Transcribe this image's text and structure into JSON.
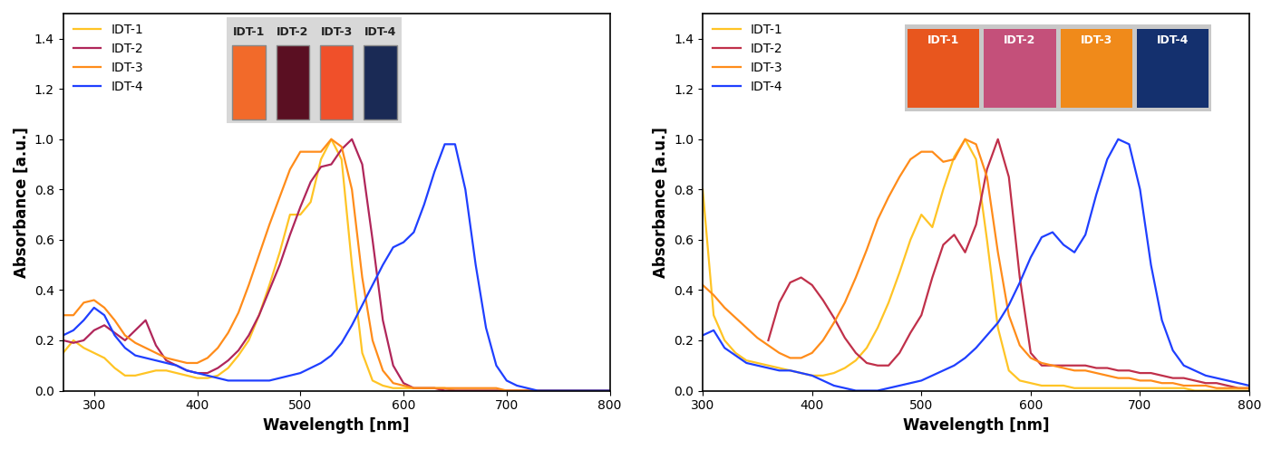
{
  "chart_data": [
    {
      "type": "line",
      "x_label": "Wavelength [nm]",
      "y_label": "Absorbance [a.u.]",
      "xlim": [
        270,
        800
      ],
      "xticks": [
        300,
        400,
        500,
        600,
        700,
        800
      ],
      "ylim": [
        0,
        1.5
      ],
      "yticks": [
        {
          "value": 0,
          "label": "0.0"
        },
        {
          "value": 0.2,
          "label": "0.2"
        },
        {
          "value": 0.4,
          "label": "0.4"
        },
        {
          "value": 0.6,
          "label": "0.6"
        },
        {
          "value": 0.8,
          "label": "0.8"
        },
        {
          "value": 1.0,
          "label": "1.0"
        },
        {
          "value": 1.2,
          "label": "1.2"
        },
        {
          "value": 1.4,
          "label": "1.4"
        }
      ],
      "legend": "upper left",
      "x": [
        270,
        280,
        290,
        300,
        310,
        320,
        330,
        340,
        350,
        360,
        370,
        380,
        390,
        400,
        410,
        420,
        430,
        440,
        450,
        460,
        470,
        480,
        490,
        500,
        510,
        520,
        530,
        540,
        550,
        560,
        570,
        580,
        590,
        600,
        610,
        620,
        630,
        640,
        650,
        660,
        670,
        680,
        690,
        700,
        710,
        720,
        730,
        740,
        750,
        760,
        770,
        780,
        790,
        800
      ],
      "series": [
        {
          "name": "IDT-1",
          "color": "#ffc425",
          "values": [
            0.15,
            0.2,
            0.17,
            0.15,
            0.13,
            0.09,
            0.06,
            0.06,
            0.07,
            0.08,
            0.08,
            0.07,
            0.06,
            0.05,
            0.05,
            0.06,
            0.09,
            0.14,
            0.2,
            0.3,
            0.42,
            0.55,
            0.7,
            0.7,
            0.75,
            0.92,
            1.0,
            0.92,
            0.5,
            0.15,
            0.04,
            0.02,
            0.01,
            0.01,
            0.01,
            0.01,
            0.01,
            0.01,
            0,
            0,
            0,
            0,
            0,
            0,
            0,
            0,
            0,
            0,
            0,
            0,
            0,
            0,
            0,
            0
          ]
        },
        {
          "name": "IDT-2",
          "color": "#b0265a",
          "values": [
            0.2,
            0.19,
            0.2,
            0.24,
            0.26,
            0.23,
            0.2,
            0.24,
            0.28,
            0.18,
            0.12,
            0.1,
            0.08,
            0.07,
            0.07,
            0.09,
            0.12,
            0.16,
            0.22,
            0.3,
            0.4,
            0.5,
            0.62,
            0.73,
            0.83,
            0.89,
            0.9,
            0.96,
            1.0,
            0.9,
            0.6,
            0.28,
            0.1,
            0.03,
            0.01,
            0.01,
            0.01,
            0,
            0,
            0,
            0,
            0,
            0,
            0,
            0,
            0,
            0,
            0,
            0,
            0,
            0,
            0,
            0,
            0
          ]
        },
        {
          "name": "IDT-3",
          "color": "#ff8c1a",
          "values": [
            0.3,
            0.3,
            0.35,
            0.36,
            0.33,
            0.28,
            0.22,
            0.19,
            0.17,
            0.15,
            0.13,
            0.12,
            0.11,
            0.11,
            0.13,
            0.17,
            0.23,
            0.31,
            0.42,
            0.54,
            0.66,
            0.77,
            0.88,
            0.95,
            0.95,
            0.95,
            1.0,
            0.97,
            0.8,
            0.45,
            0.2,
            0.08,
            0.03,
            0.02,
            0.01,
            0.01,
            0.01,
            0.01,
            0.01,
            0.01,
            0.01,
            0.01,
            0.01,
            0,
            0,
            0,
            0,
            0,
            0,
            0,
            0,
            0,
            0,
            0
          ]
        },
        {
          "name": "IDT-4",
          "color": "#1f3fff",
          "values": [
            0.22,
            0.24,
            0.28,
            0.33,
            0.3,
            0.22,
            0.17,
            0.14,
            0.13,
            0.12,
            0.11,
            0.1,
            0.08,
            0.07,
            0.06,
            0.05,
            0.04,
            0.04,
            0.04,
            0.04,
            0.04,
            0.05,
            0.06,
            0.07,
            0.09,
            0.11,
            0.14,
            0.19,
            0.26,
            0.34,
            0.42,
            0.5,
            0.57,
            0.59,
            0.63,
            0.74,
            0.87,
            0.98,
            0.98,
            0.8,
            0.5,
            0.25,
            0.1,
            0.04,
            0.02,
            0.01,
            0,
            0,
            0,
            0,
            0,
            0,
            0,
            0
          ]
        }
      ]
    },
    {
      "type": "line",
      "x_label": "Wavelength [nm]",
      "y_label": "Absorbance [a.u.]",
      "xlim": [
        300,
        800
      ],
      "xticks": [
        300,
        400,
        500,
        600,
        700,
        800
      ],
      "ylim": [
        0,
        1.5
      ],
      "yticks": [
        {
          "value": 0,
          "label": "0.0"
        },
        {
          "value": 0.2,
          "label": "0.2"
        },
        {
          "value": 0.4,
          "label": "0.4"
        },
        {
          "value": 0.6,
          "label": "0.6"
        },
        {
          "value": 0.8,
          "label": "0.8"
        },
        {
          "value": 1.0,
          "label": "1.0"
        },
        {
          "value": 1.2,
          "label": "1.2"
        },
        {
          "value": 1.4,
          "label": "1.4"
        }
      ],
      "legend": "upper left",
      "x": [
        300,
        310,
        320,
        330,
        340,
        350,
        360,
        370,
        380,
        390,
        400,
        410,
        420,
        430,
        440,
        450,
        460,
        470,
        480,
        490,
        500,
        510,
        520,
        530,
        540,
        550,
        560,
        570,
        580,
        590,
        600,
        610,
        620,
        630,
        640,
        650,
        660,
        670,
        680,
        690,
        700,
        710,
        720,
        730,
        740,
        750,
        760,
        770,
        780,
        790,
        800
      ],
      "series": [
        {
          "name": "IDT-1",
          "color": "#ffc425",
          "values": [
            0.8,
            0.3,
            0.2,
            0.15,
            0.12,
            0.11,
            0.1,
            0.09,
            0.08,
            0.07,
            0.06,
            0.06,
            0.07,
            0.09,
            0.12,
            0.17,
            0.25,
            0.35,
            0.47,
            0.6,
            0.7,
            0.65,
            0.8,
            0.93,
            1.0,
            0.92,
            0.6,
            0.25,
            0.08,
            0.04,
            0.03,
            0.02,
            0.02,
            0.02,
            0.01,
            0.01,
            0.01,
            0.01,
            0.01,
            0.01,
            0.01,
            0.01,
            0.01,
            0.01,
            0.01,
            0,
            0,
            0,
            0,
            0,
            0
          ]
        },
        {
          "name": "IDT-2",
          "color": "#c0304a",
          "values": [
            null,
            null,
            null,
            null,
            null,
            null,
            0.2,
            0.35,
            0.43,
            0.45,
            0.42,
            0.36,
            0.29,
            0.21,
            0.15,
            0.11,
            0.1,
            0.1,
            0.15,
            0.23,
            0.3,
            0.45,
            0.58,
            0.62,
            0.55,
            0.66,
            0.88,
            1.0,
            0.85,
            0.45,
            0.15,
            0.1,
            0.1,
            0.1,
            0.1,
            0.1,
            0.09,
            0.09,
            0.08,
            0.08,
            0.07,
            0.07,
            0.06,
            0.05,
            0.05,
            0.04,
            0.03,
            0.03,
            0.02,
            0.01,
            0.01
          ]
        },
        {
          "name": "IDT-3",
          "color": "#ff8c1a",
          "values": [
            0.42,
            0.38,
            0.33,
            0.29,
            0.25,
            0.21,
            0.18,
            0.15,
            0.13,
            0.13,
            0.15,
            0.2,
            0.27,
            0.35,
            0.45,
            0.56,
            0.68,
            0.77,
            0.85,
            0.92,
            0.95,
            0.95,
            0.91,
            0.92,
            1.0,
            0.98,
            0.85,
            0.55,
            0.3,
            0.18,
            0.13,
            0.11,
            0.1,
            0.09,
            0.08,
            0.08,
            0.07,
            0.06,
            0.05,
            0.05,
            0.04,
            0.04,
            0.03,
            0.03,
            0.02,
            0.02,
            0.02,
            0.01,
            0.01,
            0.01,
            0.01
          ]
        },
        {
          "name": "IDT-4",
          "color": "#1f3fff",
          "values": [
            0.22,
            0.24,
            0.17,
            0.14,
            0.11,
            0.1,
            0.09,
            0.08,
            0.08,
            0.07,
            0.06,
            0.04,
            0.02,
            0.01,
            0,
            0,
            0,
            0.01,
            0.02,
            0.03,
            0.04,
            0.06,
            0.08,
            0.1,
            0.13,
            0.17,
            0.22,
            0.27,
            0.34,
            0.43,
            0.53,
            0.61,
            0.63,
            0.58,
            0.55,
            0.62,
            0.78,
            0.92,
            1.0,
            0.98,
            0.8,
            0.5,
            0.28,
            0.16,
            0.1,
            0.08,
            0.06,
            0.05,
            0.04,
            0.03,
            0.02
          ]
        }
      ]
    }
  ]
}
